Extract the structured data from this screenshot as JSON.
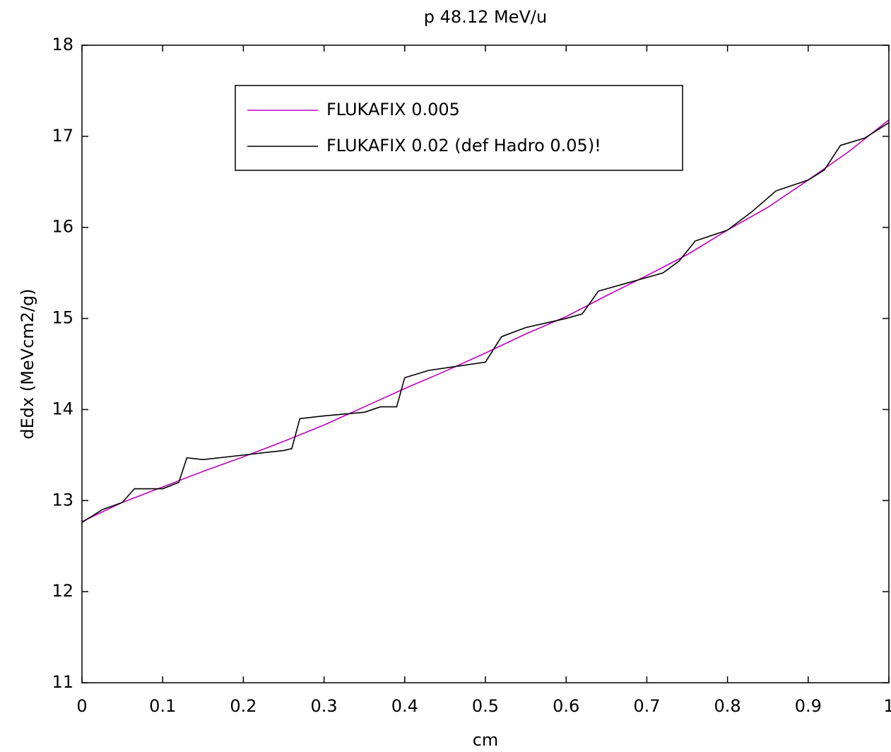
{
  "chart_data": {
    "type": "line",
    "title": "p 48.12 MeV/u",
    "xlabel": "cm",
    "ylabel": "dEdx (MeVcm2/g)",
    "xlim": [
      0,
      1
    ],
    "ylim": [
      11,
      18
    ],
    "xticks": [
      0,
      0.1,
      0.2,
      0.3,
      0.4,
      0.5,
      0.6,
      0.7,
      0.8,
      0.9,
      1
    ],
    "yticks": [
      11,
      12,
      13,
      14,
      15,
      16,
      17,
      18
    ],
    "grid": false,
    "legend": "top",
    "series": [
      {
        "name": "FLUKAFIX 0.005",
        "color": "#bf00bf",
        "x": [
          0,
          0.05,
          0.1,
          0.15,
          0.2,
          0.25,
          0.3,
          0.35,
          0.4,
          0.45,
          0.5,
          0.55,
          0.6,
          0.65,
          0.7,
          0.75,
          0.8,
          0.85,
          0.9,
          0.95,
          1
        ],
        "values": [
          12.77,
          12.98,
          13.15,
          13.32,
          13.48,
          13.65,
          13.83,
          14.03,
          14.23,
          14.42,
          14.62,
          14.83,
          15.02,
          15.25,
          15.47,
          15.7,
          15.97,
          16.22,
          16.52,
          16.83,
          17.18
        ]
      },
      {
        "name": "FLUKAFIX 0.02 (def Hadro 0.05)!",
        "color": "#000000",
        "x": [
          0,
          0.025,
          0.05,
          0.065,
          0.1,
          0.12,
          0.13,
          0.15,
          0.2,
          0.25,
          0.26,
          0.27,
          0.3,
          0.35,
          0.37,
          0.39,
          0.4,
          0.43,
          0.5,
          0.52,
          0.55,
          0.6,
          0.62,
          0.64,
          0.7,
          0.72,
          0.74,
          0.76,
          0.8,
          0.83,
          0.86,
          0.9,
          0.92,
          0.94,
          0.97,
          1
        ],
        "values": [
          12.76,
          12.9,
          12.98,
          13.13,
          13.13,
          13.2,
          13.47,
          13.45,
          13.5,
          13.55,
          13.57,
          13.9,
          13.93,
          13.97,
          14.03,
          14.03,
          14.35,
          14.43,
          14.52,
          14.8,
          14.9,
          15.0,
          15.05,
          15.3,
          15.45,
          15.5,
          15.63,
          15.85,
          15.97,
          16.17,
          16.4,
          16.52,
          16.63,
          16.9,
          16.98,
          17.15
        ]
      }
    ]
  }
}
